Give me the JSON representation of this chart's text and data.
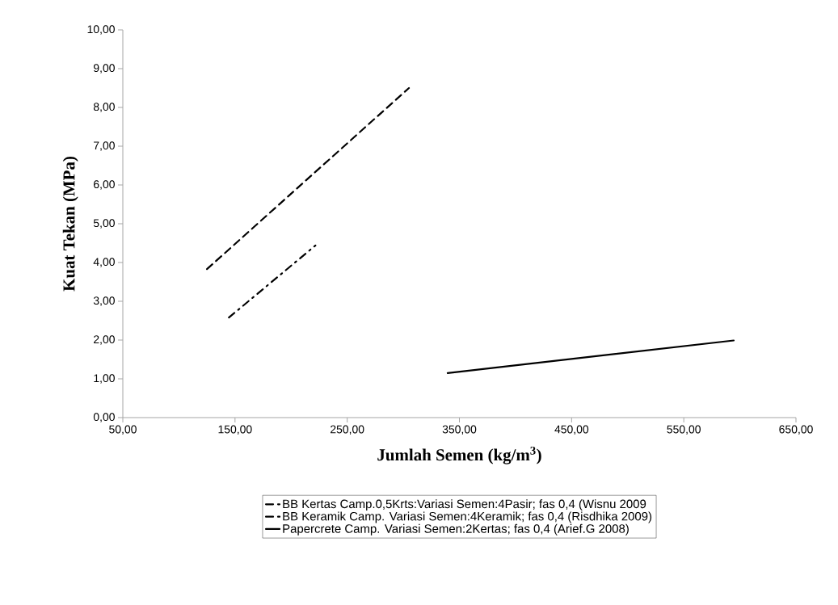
{
  "chart_data": {
    "type": "line",
    "xlabel": "Jumlah Semen (kg/m$^{3}$)",
    "ylabel": "Kuat Tekan (MPa)",
    "xlim": [
      50,
      650
    ],
    "xticks": [
      {
        "value": 50,
        "label": "50,00"
      },
      {
        "value": 150,
        "label": "150,00"
      },
      {
        "value": 250,
        "label": "250,00"
      },
      {
        "value": 350,
        "label": "350,00"
      },
      {
        "value": 450,
        "label": "450,00"
      },
      {
        "value": 550,
        "label": "550,00"
      },
      {
        "value": 650,
        "label": "650,00"
      }
    ],
    "ylim": [
      0,
      10
    ],
    "yticks": [
      {
        "value": 0,
        "label": "0,00"
      },
      {
        "value": 1,
        "label": "1,00"
      },
      {
        "value": 2,
        "label": "2,00"
      },
      {
        "value": 3,
        "label": "3,00"
      },
      {
        "value": 4,
        "label": "4,00"
      },
      {
        "value": 5,
        "label": "5,00"
      },
      {
        "value": 6,
        "label": "6,00"
      },
      {
        "value": 7,
        "label": "7,00"
      },
      {
        "value": 8,
        "label": "8,00"
      },
      {
        "value": 9,
        "label": "9,00"
      },
      {
        "value": 10,
        "label": "10,00"
      }
    ],
    "grid": false,
    "legend": "bottom",
    "marker": "none",
    "series": [
      {
        "name": "BB Kertas Camp.0,5Krts:Variasi Semen:4Pasir; fas 0,4 (Wisnu 2009",
        "color": "#000000",
        "line_style": "dashdot",
        "x": [
          144.5,
          221.7
        ],
        "values": [
          2.58,
          4.44
        ]
      },
      {
        "name": "BB Keramik Camp. Variasi Semen:4Keramik; fas 0,4 (Risdhika 2009)",
        "color": "#000000",
        "line_style": "dashed",
        "x": [
          125,
          305
        ],
        "values": [
          3.83,
          8.5
        ]
      },
      {
        "name": "Papercrete Camp. Variasi Semen:2Kertas; fas 0,4 (Arief.G 2008)",
        "color": "#000000",
        "line_style": "solid",
        "x": [
          339.5,
          594.5
        ],
        "values": [
          1.15,
          1.99
        ]
      }
    ]
  }
}
